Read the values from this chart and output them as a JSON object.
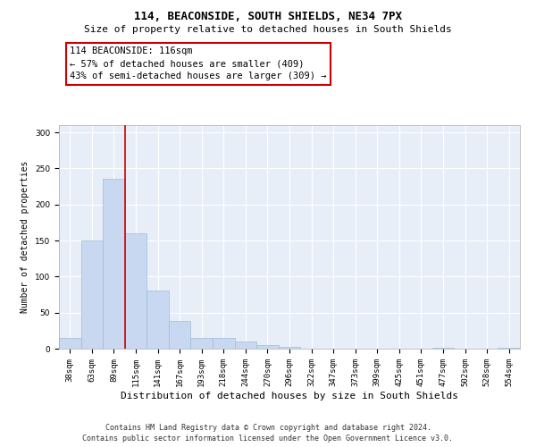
{
  "title1": "114, BEACONSIDE, SOUTH SHIELDS, NE34 7PX",
  "title2": "Size of property relative to detached houses in South Shields",
  "xlabel": "Distribution of detached houses by size in South Shields",
  "ylabel": "Number of detached properties",
  "footer1": "Contains HM Land Registry data © Crown copyright and database right 2024.",
  "footer2": "Contains public sector information licensed under the Open Government Licence v3.0.",
  "annotation_title": "114 BEACONSIDE: 116sqm",
  "annotation_line2": "← 57% of detached houses are smaller (409)",
  "annotation_line3": "43% of semi-detached houses are larger (309) →",
  "bar_color": "#c8d8f0",
  "bar_edge_color": "#a0bcd8",
  "vline_color": "#cc0000",
  "categories": [
    "38sqm",
    "63sqm",
    "89sqm",
    "115sqm",
    "141sqm",
    "167sqm",
    "193sqm",
    "218sqm",
    "244sqm",
    "270sqm",
    "296sqm",
    "322sqm",
    "347sqm",
    "373sqm",
    "399sqm",
    "425sqm",
    "451sqm",
    "477sqm",
    "502sqm",
    "528sqm",
    "554sqm"
  ],
  "values": [
    15,
    150,
    235,
    160,
    80,
    38,
    15,
    15,
    10,
    5,
    2,
    0,
    0,
    0,
    0,
    0,
    0,
    1,
    0,
    0,
    1
  ],
  "ylim": [
    0,
    310
  ],
  "yticks": [
    0,
    50,
    100,
    150,
    200,
    250,
    300
  ],
  "bg_color": "#e8eef8",
  "vline_bin": 2,
  "title1_fontsize": 9,
  "title2_fontsize": 8,
  "xlabel_fontsize": 8,
  "ylabel_fontsize": 7,
  "tick_fontsize": 6.5,
  "ann_fontsize": 7.5,
  "footer_fontsize": 6
}
